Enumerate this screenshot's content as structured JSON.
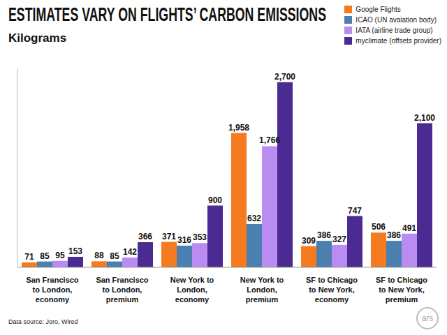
{
  "chart_data": {
    "type": "bar",
    "title": "ESTIMATES VARY ON FLIGHTS’ CARBON EMISSIONS",
    "subtitle": "Kilograms",
    "source": "Data source: Joro, Wired",
    "logo": "ars",
    "categories": [
      "San Francisco to London, economy",
      "San Francisco to London, premium",
      "New York to London, economy",
      "New York to London, premium",
      "SF to Chicago to New York, economy",
      "SF to Chicago to New York, premium"
    ],
    "series": [
      {
        "name": "Google Flights",
        "color": "#f47b20",
        "values": [
          71,
          88,
          371,
          1958,
          309,
          506
        ],
        "value_labels": [
          "71",
          "88",
          "371",
          "1,958",
          "309",
          "506"
        ]
      },
      {
        "name": "ICAO (UN avaiation body)",
        "color": "#4a7fb0",
        "values": [
          85,
          85,
          316,
          632,
          386,
          386
        ]
      },
      {
        "name": "IATA (airline trade group)",
        "color": "#b98cf2",
        "values": [
          95,
          142,
          353,
          1766,
          327,
          491
        ],
        "value_labels": [
          "95",
          "142",
          "353",
          "1,766",
          "327",
          "491"
        ]
      },
      {
        "name": "myclimate (offsets provider)",
        "color": "#4b2a91",
        "values": [
          153,
          366,
          900,
          2700,
          747,
          2100
        ],
        "value_labels": [
          "153",
          "366",
          "900",
          "2,700",
          "747",
          "2,100"
        ]
      }
    ],
    "ylim": [
      0,
      2900
    ],
    "grid": false,
    "legend": "top-right",
    "data_labels": true,
    "tick_labels": "x"
  }
}
